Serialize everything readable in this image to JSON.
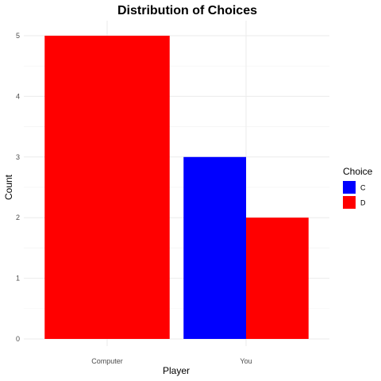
{
  "chart_data": {
    "type": "bar",
    "title": "Distribution of Choices",
    "xlabel": "Player",
    "ylabel": "Count",
    "categories": [
      "Computer",
      "You"
    ],
    "ylim": [
      0,
      5
    ],
    "y_ticks": [
      "0",
      "1",
      "2",
      "3",
      "4",
      "5"
    ],
    "grid": true,
    "bar_mode": "dodge",
    "legend": {
      "title": "Choice",
      "placement": "right",
      "entries": [
        {
          "label": "C",
          "color": "#0000FF"
        },
        {
          "label": "D",
          "color": "#FF0000"
        }
      ]
    },
    "bars": [
      {
        "category": "Computer",
        "choice": "D",
        "value": 5,
        "color": "#FF0000"
      },
      {
        "category": "You",
        "choice": "C",
        "value": 3,
        "color": "#0000FF"
      },
      {
        "category": "You",
        "choice": "D",
        "value": 2,
        "color": "#FF0000"
      }
    ]
  }
}
